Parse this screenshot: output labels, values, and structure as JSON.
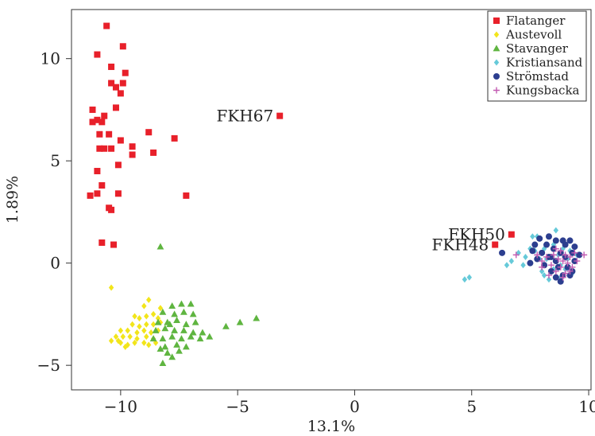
{
  "chart_data": {
    "type": "scatter",
    "title": "",
    "xlabel": "13.1%",
    "ylabel": "1.89%",
    "xlim": [
      -12.1,
      10.1
    ],
    "ylim": [
      -6.2,
      12.4
    ],
    "xticks": [
      -10,
      -5,
      0,
      5,
      10
    ],
    "xtick_labels": [
      "−10",
      "−5",
      "0",
      "5",
      "10"
    ],
    "yticks": [
      -5,
      0,
      5,
      10
    ],
    "ytick_labels": [
      "−5",
      "0",
      "5",
      "10"
    ],
    "grid": false,
    "legend_position": "top-right",
    "series": [
      {
        "name": "Flatanger",
        "color": "#e8202a",
        "marker": "square",
        "points": [
          [
            -10.6,
            11.6
          ],
          [
            -9.9,
            10.6
          ],
          [
            -11.0,
            10.2
          ],
          [
            -10.4,
            9.6
          ],
          [
            -9.8,
            9.3
          ],
          [
            -10.4,
            8.8
          ],
          [
            -9.9,
            8.8
          ],
          [
            -10.2,
            8.6
          ],
          [
            -10.0,
            8.3
          ],
          [
            -11.2,
            7.5
          ],
          [
            -10.7,
            7.2
          ],
          [
            -10.2,
            7.6
          ],
          [
            -11.0,
            7.0
          ],
          [
            -10.8,
            6.9
          ],
          [
            -11.2,
            6.9
          ],
          [
            -10.9,
            6.3
          ],
          [
            -10.5,
            6.3
          ],
          [
            -10.0,
            6.0
          ],
          [
            -8.8,
            6.4
          ],
          [
            -7.7,
            6.1
          ],
          [
            -10.9,
            5.6
          ],
          [
            -10.7,
            5.6
          ],
          [
            -10.4,
            5.6
          ],
          [
            -9.5,
            5.7
          ],
          [
            -9.5,
            5.3
          ],
          [
            -8.6,
            5.4
          ],
          [
            -10.1,
            4.8
          ],
          [
            -11.0,
            4.5
          ],
          [
            -10.8,
            3.8
          ],
          [
            -10.1,
            3.4
          ],
          [
            -11.0,
            3.4
          ],
          [
            -11.3,
            3.3
          ],
          [
            -7.2,
            3.3
          ],
          [
            -10.5,
            2.7
          ],
          [
            -10.4,
            2.6
          ],
          [
            -10.8,
            1.0
          ],
          [
            -10.3,
            0.9
          ],
          [
            -3.2,
            7.2
          ],
          [
            6.0,
            0.9
          ],
          [
            6.7,
            1.4
          ]
        ]
      },
      {
        "name": "Austevoll",
        "color": "#f2e51b",
        "marker": "diamond",
        "points": [
          [
            -10.4,
            -1.2
          ],
          [
            -8.8,
            -1.8
          ],
          [
            -9.0,
            -2.1
          ],
          [
            -8.3,
            -2.2
          ],
          [
            -9.4,
            -2.6
          ],
          [
            -9.2,
            -2.7
          ],
          [
            -8.9,
            -2.6
          ],
          [
            -8.6,
            -2.5
          ],
          [
            -8.4,
            -2.7
          ],
          [
            -9.5,
            -3.0
          ],
          [
            -9.2,
            -3.1
          ],
          [
            -8.9,
            -3.0
          ],
          [
            -8.6,
            -3.0
          ],
          [
            -8.3,
            -2.9
          ],
          [
            -10.0,
            -3.3
          ],
          [
            -9.7,
            -3.3
          ],
          [
            -9.3,
            -3.4
          ],
          [
            -9.0,
            -3.3
          ],
          [
            -8.7,
            -3.4
          ],
          [
            -8.4,
            -3.3
          ],
          [
            -10.2,
            -3.6
          ],
          [
            -9.9,
            -3.6
          ],
          [
            -9.6,
            -3.6
          ],
          [
            -9.3,
            -3.7
          ],
          [
            -8.9,
            -3.6
          ],
          [
            -8.6,
            -3.7
          ],
          [
            -10.0,
            -3.9
          ],
          [
            -9.7,
            -4.0
          ],
          [
            -9.4,
            -3.9
          ],
          [
            -9.0,
            -3.9
          ],
          [
            -10.4,
            -3.8
          ],
          [
            -10.1,
            -3.8
          ],
          [
            -8.5,
            -3.9
          ],
          [
            -8.8,
            -4.0
          ],
          [
            -9.8,
            -4.1
          ]
        ]
      },
      {
        "name": "Stavanger",
        "color": "#5fb540",
        "marker": "triangle",
        "points": [
          [
            -8.3,
            0.8
          ],
          [
            -7.8,
            -2.1
          ],
          [
            -7.4,
            -2.0
          ],
          [
            -7.0,
            -2.0
          ],
          [
            -8.2,
            -2.4
          ],
          [
            -7.7,
            -2.5
          ],
          [
            -7.3,
            -2.4
          ],
          [
            -6.9,
            -2.5
          ],
          [
            -8.4,
            -2.9
          ],
          [
            -8.0,
            -2.9
          ],
          [
            -7.6,
            -2.8
          ],
          [
            -7.2,
            -3.0
          ],
          [
            -6.8,
            -2.9
          ],
          [
            -8.5,
            -3.3
          ],
          [
            -8.1,
            -3.2
          ],
          [
            -7.7,
            -3.3
          ],
          [
            -7.3,
            -3.3
          ],
          [
            -6.9,
            -3.4
          ],
          [
            -6.5,
            -3.4
          ],
          [
            -8.6,
            -3.7
          ],
          [
            -8.2,
            -3.7
          ],
          [
            -7.8,
            -3.6
          ],
          [
            -7.4,
            -3.7
          ],
          [
            -7.0,
            -3.6
          ],
          [
            -6.6,
            -3.7
          ],
          [
            -8.1,
            -4.1
          ],
          [
            -7.6,
            -4.0
          ],
          [
            -7.2,
            -4.1
          ],
          [
            -8.0,
            -4.4
          ],
          [
            -7.5,
            -4.3
          ],
          [
            -8.3,
            -4.2
          ],
          [
            -8.2,
            -4.9
          ],
          [
            -5.5,
            -3.1
          ],
          [
            -4.9,
            -2.9
          ],
          [
            -4.2,
            -2.7
          ],
          [
            -7.9,
            -3.0
          ],
          [
            -6.2,
            -3.6
          ],
          [
            -7.8,
            -4.6
          ]
        ]
      },
      {
        "name": "Kristiansand",
        "color": "#66cad9",
        "marker": "diamond",
        "points": [
          [
            4.7,
            -0.8
          ],
          [
            4.9,
            -0.7
          ],
          [
            6.5,
            -0.1
          ],
          [
            6.7,
            0.1
          ],
          [
            7.0,
            0.5
          ],
          [
            7.2,
            -0.1
          ],
          [
            7.3,
            0.3
          ],
          [
            7.5,
            0.7
          ],
          [
            7.6,
            1.3
          ],
          [
            7.8,
            1.3
          ],
          [
            7.9,
            0.2
          ],
          [
            8.0,
            -0.4
          ],
          [
            8.1,
            -0.6
          ],
          [
            8.2,
            0.2
          ],
          [
            8.3,
            -0.8
          ],
          [
            8.4,
            -0.4
          ],
          [
            8.5,
            0.9
          ],
          [
            8.6,
            1.6
          ],
          [
            8.7,
            0.4
          ],
          [
            8.8,
            -0.1
          ],
          [
            8.9,
            0.7
          ],
          [
            9.0,
            -0.3
          ],
          [
            9.1,
            0.2
          ],
          [
            9.2,
            0.6
          ],
          [
            9.3,
            -0.5
          ],
          [
            7.7,
            0.6
          ],
          [
            8.1,
            0.7
          ],
          [
            8.5,
            -0.3
          ],
          [
            8.8,
            -0.7
          ],
          [
            9.5,
            0.4
          ]
        ]
      },
      {
        "name": "Strömstad",
        "color": "#2c3e8f",
        "marker": "circle",
        "points": [
          [
            6.3,
            0.5
          ],
          [
            7.5,
            0.0
          ],
          [
            7.7,
            0.9
          ],
          [
            7.8,
            0.2
          ],
          [
            7.9,
            1.2
          ],
          [
            8.0,
            0.5
          ],
          [
            8.1,
            -0.1
          ],
          [
            8.2,
            0.9
          ],
          [
            8.3,
            1.3
          ],
          [
            8.3,
            0.3
          ],
          [
            8.4,
            -0.4
          ],
          [
            8.5,
            0.7
          ],
          [
            8.6,
            0.1
          ],
          [
            8.6,
            1.1
          ],
          [
            8.7,
            -0.2
          ],
          [
            8.8,
            0.5
          ],
          [
            8.9,
            1.1
          ],
          [
            8.9,
            -0.6
          ],
          [
            9.0,
            0.3
          ],
          [
            9.0,
            0.9
          ],
          [
            9.1,
            -0.2
          ],
          [
            9.2,
            1.1
          ],
          [
            9.3,
            0.5
          ],
          [
            9.3,
            -0.4
          ],
          [
            9.4,
            0.1
          ],
          [
            8.8,
            -0.9
          ],
          [
            8.4,
            0.3
          ],
          [
            9.6,
            0.4
          ],
          [
            7.6,
            0.6
          ],
          [
            9.2,
            -0.6
          ],
          [
            8.6,
            -0.7
          ],
          [
            9.4,
            0.8
          ]
        ]
      },
      {
        "name": "Kungsbacka",
        "color": "#c25bb2",
        "marker": "plus",
        "points": [
          [
            6.9,
            0.4
          ],
          [
            7.8,
            0.4
          ],
          [
            8.0,
            -0.2
          ],
          [
            8.2,
            0.3
          ],
          [
            8.4,
            -0.1
          ],
          [
            8.5,
            0.4
          ],
          [
            8.6,
            -0.4
          ],
          [
            8.7,
            0.2
          ],
          [
            8.8,
            0.6
          ],
          [
            8.8,
            -0.2
          ],
          [
            8.9,
            0.1
          ],
          [
            9.0,
            0.4
          ],
          [
            9.0,
            -0.5
          ],
          [
            9.1,
            0.0
          ],
          [
            9.2,
            0.3
          ],
          [
            9.3,
            -0.2
          ],
          [
            9.4,
            0.5
          ],
          [
            9.5,
            0.1
          ],
          [
            9.8,
            0.4
          ],
          [
            8.3,
            -0.6
          ],
          [
            9.2,
            -0.4
          ],
          [
            8.6,
            0.7
          ],
          [
            8.9,
            -0.7
          ],
          [
            8.0,
            0.1
          ]
        ]
      }
    ],
    "annotations": [
      {
        "text": "FKH67",
        "x": -3.2,
        "y": 7.2
      },
      {
        "text": "FKH50",
        "x": 6.7,
        "y": 1.4
      },
      {
        "text": "FKH48",
        "x": 6.0,
        "y": 0.9
      }
    ]
  }
}
